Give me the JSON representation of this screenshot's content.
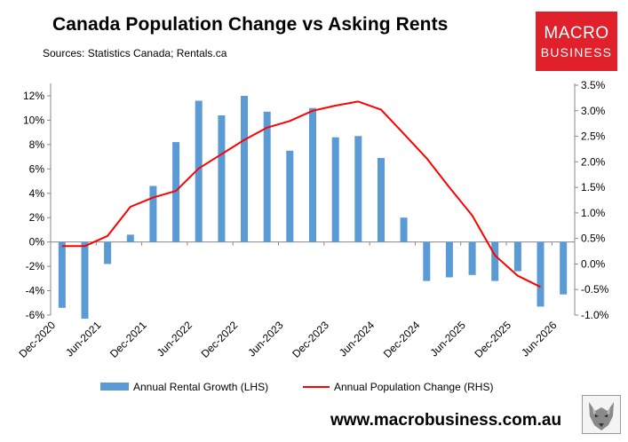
{
  "title": "Canada Population Change vs Asking Rents",
  "subtitle": "Sources: Statistics Canada; Rentals.ca",
  "logo": {
    "line1": "MACRO",
    "line2": "BUSINESS"
  },
  "footer": {
    "url": "www.macrobusiness.com.au"
  },
  "colors": {
    "bars": "#5b9bd5",
    "line": "#ff0000",
    "logo_bg": "#e0202a"
  },
  "chart_data": {
    "type": "bar+line",
    "x_tick_labels": [
      "Dec-2020",
      "Jun-2021",
      "Dec-2021",
      "Jun-2022",
      "Dec-2022",
      "Jun-2023",
      "Dec-2023",
      "Jun-2024",
      "Dec-2024",
      "Jun-2025",
      "Dec-2025",
      "Jun-2026"
    ],
    "left_axis": {
      "ylim": [
        -6,
        12
      ],
      "ticks": [
        "12%",
        "10%",
        "8%",
        "6%",
        "4%",
        "2%",
        "0%",
        "-2%",
        "-4%",
        "-6%"
      ]
    },
    "right_axis": {
      "ylim": [
        -1.0,
        3.5
      ],
      "ticks": [
        "3.5%",
        "3.0%",
        "2.5%",
        "2.0%",
        "1.5%",
        "1.0%",
        "0.5%",
        "0.0%",
        "-0.5%",
        "-1.0%"
      ]
    },
    "legend": {
      "position": "bottom"
    },
    "bar_series": {
      "name": "Annual Rental Growth (LHS)",
      "axis": "left",
      "values": [
        -5.4,
        -6.3,
        -1.8,
        0.6,
        4.6,
        8.2,
        11.6,
        10.4,
        12.0,
        10.7,
        7.5,
        11.0,
        8.6,
        8.7,
        6.9,
        2.0,
        -3.2,
        -2.9,
        -2.7,
        -3.2,
        -2.4,
        -5.3,
        -4.3
      ]
    },
    "line_series": {
      "name": "Annual Population Change (RHS)",
      "axis": "right",
      "values": [
        0.35,
        0.35,
        0.55,
        1.12,
        1.3,
        1.43,
        1.87,
        2.15,
        2.43,
        2.67,
        2.8,
        3.0,
        3.1,
        3.18,
        3.02,
        2.55,
        2.07,
        1.5,
        0.95,
        0.17,
        -0.23,
        -0.45
      ]
    }
  }
}
